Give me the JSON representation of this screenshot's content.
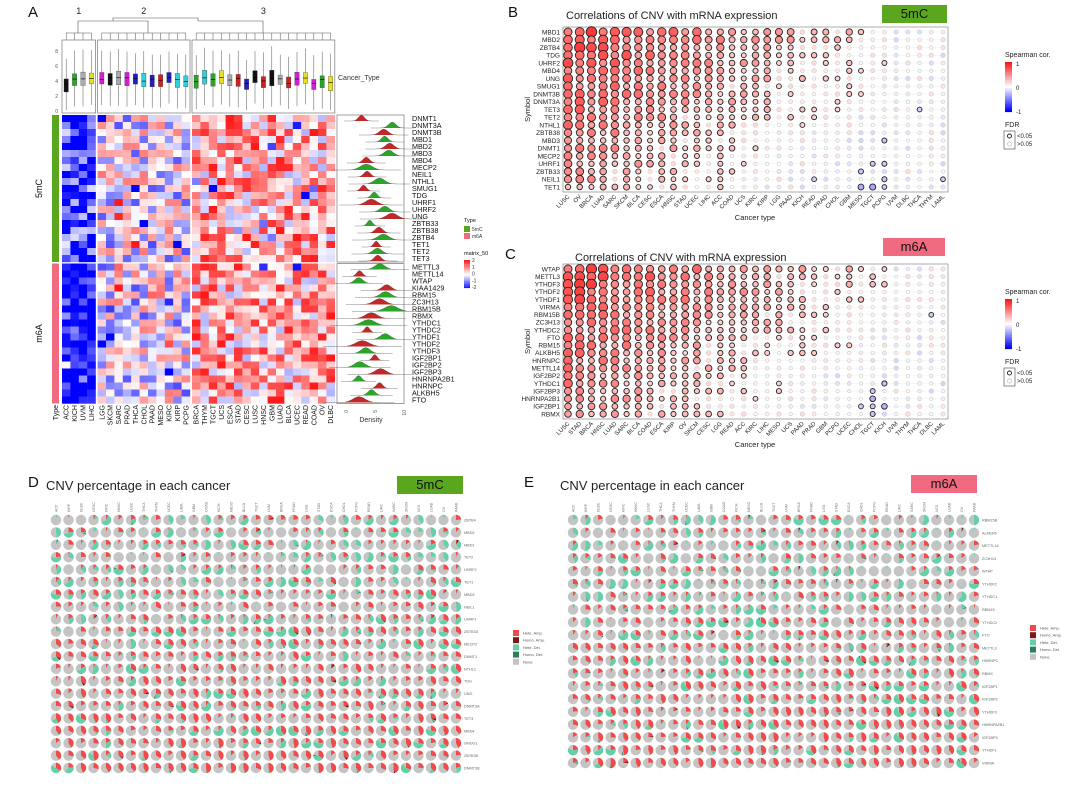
{
  "panel_labels": {
    "a": "A",
    "b": "B",
    "c": "C",
    "d": "D",
    "e": "E"
  },
  "colors": {
    "type_5mC": "#5aa61f",
    "type_m6A": "#f06a80",
    "low": "#0000ff",
    "mid": "#ffffff",
    "high": "#ff1a1a",
    "hete_amp": "#f24a4a",
    "homo_amp": "#7a1a1a",
    "hete_del": "#66cfa8",
    "homo_del": "#2f7d5c",
    "none": "#c4c4c4"
  },
  "chart_data": [
    {
      "type": "heatmap",
      "panel": "A",
      "cluster_labels": [
        "1",
        "2",
        "3"
      ],
      "boxplot_legend": "Cancer_Type",
      "boxplot_yticks": [
        "0",
        "2",
        "4",
        "6",
        "8"
      ],
      "column_groups": [
        [
          "ACC",
          "KICH",
          "UVM",
          "LIHC"
        ],
        [
          "LGG",
          "SKCM",
          "SARC",
          "PRAD",
          "THCA",
          "CHOL",
          "PAAD",
          "MESO",
          "KIRC",
          "KIRP",
          "PCPG"
        ],
        [
          "BRCA",
          "THYM",
          "TGCT",
          "UCS",
          "ESCA",
          "STAD",
          "CESC",
          "LUSC",
          "HNSC",
          "GBM",
          "LUAD",
          "BLCA",
          "UCEC",
          "READ",
          "COAD",
          "OV",
          "DLBC"
        ]
      ],
      "box_colors": [
        "#111111",
        "#2aa52a",
        "#aaaaaa",
        "#e8e020",
        "#d020d0",
        "#111111",
        "#aaaaaa",
        "#d020d0",
        "#2020c0",
        "#30d0d8",
        "#2020c0",
        "#d02020",
        "#2020c0",
        "#30d0d8",
        "#30d0d8",
        "#2aa52a",
        "#30d0d8",
        "#2aa52a",
        "#e8e020",
        "#aaaaaa",
        "#d02020",
        "#2020c0",
        "#111111",
        "#d02020",
        "#111111",
        "#aaaaaa",
        "#d02020",
        "#d020d0",
        "#e8e020",
        "#d020d0",
        "#2aa52a",
        "#e8e020"
      ],
      "type_axis_label": "Type",
      "row_groups": [
        {
          "name": "5mC",
          "rows": [
            "DNMT1",
            "DNMT3A",
            "DNMT3B",
            "MBD1",
            "MBD2",
            "MBD3",
            "MBD4",
            "MECP2",
            "NEIL1",
            "NTHL1",
            "SMUG1",
            "TDG",
            "UHRF1",
            "UHRF2",
            "UNG",
            "ZBTB33",
            "ZBTB38",
            "ZBTB4",
            "TET1",
            "TET2",
            "TET3"
          ]
        },
        {
          "name": "m6A",
          "rows": [
            "METTL3",
            "METTL14",
            "WTAP",
            "KIAA1429",
            "RBM15",
            "ZC3H13",
            "RBM15B",
            "RBMX",
            "YTHDC1",
            "YTHDC2",
            "YTHDF1",
            "YTHDF2",
            "YTHDF3",
            "IGF2BP1",
            "IGF2BP2",
            "IGF2BP3",
            "HNRNPA2B1",
            "HNRNPC",
            "ALKBH5",
            "FTO"
          ]
        }
      ],
      "density_xlabel": "Density",
      "density_ticks": [
        "0",
        "5",
        "10"
      ],
      "legend": {
        "type_title": "Type",
        "type_items": [
          "5mC",
          "m6A"
        ],
        "scale_title": "matrix_50",
        "scale_ticks": [
          "2",
          "1",
          "0",
          "-1",
          "-2"
        ]
      },
      "zlim": [
        -2,
        2
      ]
    },
    {
      "type": "scatter",
      "panel": "B",
      "title": "Correlations of CNV with mRNA expression",
      "tag": "5mC",
      "xlabel": "Cancer type",
      "ylabel": "Symbol",
      "columns": [
        "LUSC",
        "OV",
        "BRCA",
        "LUAD",
        "SARC",
        "SKCM",
        "BLCA",
        "CESC",
        "ESCA",
        "HNSC",
        "STAD",
        "UCEC",
        "LIHC",
        "ACC",
        "COAD",
        "UCS",
        "KIRC",
        "KIRP",
        "LGG",
        "PAAD",
        "KICH",
        "READ",
        "PRAD",
        "CHOL",
        "GBM",
        "MESO",
        "TGCT",
        "PCPG",
        "UVM",
        "DLBC",
        "THCA",
        "THYM",
        "LAML"
      ],
      "rows": [
        "MBD1",
        "MBD2",
        "ZBTB4",
        "TDG",
        "UHRF2",
        "MBD4",
        "UNG",
        "SMUG1",
        "DNMT3B",
        "DNMT3A",
        "TET3",
        "TET2",
        "NTHL1",
        "ZBTB38",
        "MBD3",
        "DNMT1",
        "MECP2",
        "UHRF1",
        "ZBTB33",
        "NEIL1",
        "TET1"
      ],
      "legend": {
        "color_title": "Spearman cor.",
        "color_ticks": [
          "1",
          "0",
          "-1"
        ],
        "fdr_title": "FDR",
        "fdr_items": [
          "<0.05",
          ">0.05"
        ]
      },
      "clim": [
        -1,
        1
      ]
    },
    {
      "type": "scatter",
      "panel": "C",
      "title": "Correlations of CNV with mRNA expression",
      "tag": "m6A",
      "xlabel": "Cancer type",
      "ylabel": "Symbol",
      "columns": [
        "LUSC",
        "STAD",
        "BRCA",
        "HNSC",
        "LUAD",
        "SARC",
        "BLCA",
        "COAD",
        "ESCA",
        "KIRP",
        "OV",
        "SKCM",
        "CESC",
        "LGG",
        "READ",
        "ACC",
        "KIRC",
        "LIHC",
        "MESO",
        "UCS",
        "PAAD",
        "PRAD",
        "GBM",
        "PCPG",
        "UCEC",
        "CHOL",
        "TGCT",
        "KICH",
        "UVM",
        "THYM",
        "THCA",
        "DLBC",
        "LAML"
      ],
      "rows": [
        "WTAP",
        "METTL3",
        "YTHDF3",
        "YTHDF2",
        "YTHDF1",
        "VIRMA",
        "RBM15B",
        "ZC3H13",
        "YTHDC2",
        "FTO",
        "RBM15",
        "ALKBH5",
        "HNRNPC",
        "METTL14",
        "IGF2BP2",
        "YTHDC1",
        "IGF2BP3",
        "HNRNPA2B1",
        "IGF2BP1",
        "RBMX"
      ],
      "legend": {
        "color_title": "Spearman cor.",
        "color_ticks": [
          "1",
          "0",
          "-1"
        ],
        "fdr_title": "FDR",
        "fdr_items": [
          "<0.05",
          ">0.05"
        ]
      },
      "clim": [
        -1,
        1
      ]
    },
    {
      "type": "pie",
      "panel": "D",
      "title": "CNV percentage in each cancer",
      "tag": "5mC",
      "columns": [
        "ACC",
        "KIRP",
        "DLBC",
        "CESC",
        "KIRC",
        "HNSC",
        "LUSC",
        "THCA",
        "THYM",
        "UCEC",
        "LAML",
        "GBM",
        "COAD",
        "KICH",
        "MESO",
        "BLCA",
        "TGCT",
        "UVM",
        "BRCA",
        "PRAD",
        "LGG",
        "STAD",
        "ESCA",
        "CHOL",
        "PCPG",
        "READ",
        "LIHC",
        "SARC",
        "SKCM",
        "UCS",
        "LUAD",
        "OV",
        "PAAD"
      ],
      "rows": [
        "ZBTB4",
        "MBD2",
        "MBD1",
        "TET2",
        "UHRF2",
        "TET1",
        "MBD3",
        "NEIL1",
        "UHRF1",
        "ZBTB33",
        "MECP2",
        "DNMT1",
        "NTHL1",
        "TDG",
        "UNG",
        "DNMT3A",
        "TET3",
        "MBD4",
        "SMUG1",
        "ZBTB38",
        "DNMT3B"
      ],
      "legend": [
        "Hete. Amp.",
        "Homo. Amp.",
        "Hete. Del.",
        "Homo. Del.",
        "None"
      ]
    },
    {
      "type": "pie",
      "panel": "E",
      "title": "CNV percentage in each cancer",
      "tag": "m6A",
      "columns": [
        "ACC",
        "KIRP",
        "DLBC",
        "CESC",
        "KIRC",
        "HNSC",
        "LUSC",
        "THCA",
        "THYM",
        "UCEC",
        "LAML",
        "GBM",
        "COAD",
        "KICH",
        "MESO",
        "BLCA",
        "TGCT",
        "UVM",
        "BRCA",
        "PRAD",
        "LGG",
        "STAD",
        "ESCA",
        "CHOL",
        "PCPG",
        "READ",
        "LIHC",
        "SARC",
        "SKCM",
        "UCS",
        "LUAD",
        "OV",
        "PAAD"
      ],
      "rows": [
        "RBM15B",
        "ALKBH5",
        "METTL14",
        "ZC3H13",
        "WTAP",
        "YTHDF2",
        "YTHDC1",
        "RBM15",
        "YTHDC2",
        "FTO",
        "METTL3",
        "HNRNPC",
        "RBMX",
        "IGF2BP1",
        "IGF2BP2",
        "YTHDF3",
        "HNRNPA2B1",
        "IGF2BP3",
        "YTHDF1",
        "VIRMA"
      ],
      "legend": [
        "Hete. Amp.",
        "Homo. Amp.",
        "Hete. Del.",
        "Homo. Del.",
        "None"
      ]
    }
  ]
}
